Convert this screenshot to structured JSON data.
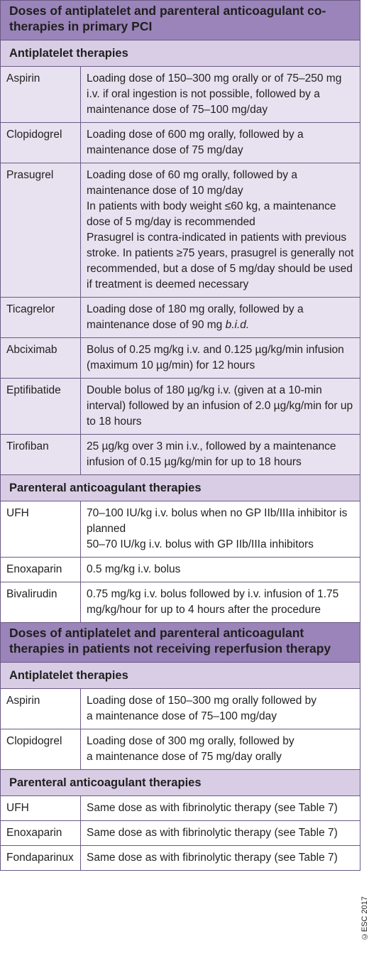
{
  "section1": {
    "title": "Doses of antiplatelet and parenteral anticoagulant co-therapies in primary PCI",
    "antiplatelet_heading": "Antiplatelet therapies",
    "antiplatelet_rows": [
      {
        "drug": "Aspirin",
        "lines": [
          "Loading dose of 150–300 mg orally or of 75–250 mg i.v. if oral ingestion is not possible, followed by a maintenance dose of 75–100 mg/day"
        ]
      },
      {
        "drug": "Clopidogrel",
        "lines": [
          "Loading dose of 600 mg orally, followed by a maintenance dose of 75 mg/day"
        ]
      },
      {
        "drug": "Prasugrel",
        "lines": [
          "Loading dose of 60 mg orally, followed by a maintenance dose of 10 mg/day",
          "In patients with body weight ≤60 kg, a maintenance dose of 5 mg/day is recommended",
          "Prasugrel is contra-indicated in patients with previous stroke. In patients ≥75 years, prasugrel is generally not recommended, but a dose of 5 mg/day should be used if treatment is deemed necessary"
        ]
      },
      {
        "drug": "Ticagrelor",
        "lines": [
          "Loading dose of 180 mg orally, followed by a maintenance dose of 90 mg b.i.d."
        ]
      },
      {
        "drug": "Abciximab",
        "lines": [
          "Bolus of 0.25 mg/kg i.v. and 0.125 µg/kg/min infusion (maximum 10 µg/min) for 12 hours"
        ]
      },
      {
        "drug": "Eptifibatide",
        "lines": [
          "Double bolus of 180 µg/kg i.v. (given at a 10-min interval) followed by an infusion of 2.0 µg/kg/min for up to 18 hours"
        ]
      },
      {
        "drug": "Tirofiban",
        "lines": [
          "25 µg/kg over 3 min i.v., followed by a maintenance infusion of 0.15 µg/kg/min for up to 18 hours"
        ]
      }
    ],
    "anticoagulant_heading": "Parenteral anticoagulant therapies",
    "anticoagulant_rows": [
      {
        "drug": "UFH",
        "lines": [
          "70–100 IU/kg i.v. bolus when no GP IIb/IIIa inhibitor is planned",
          "50–70 IU/kg i.v. bolus with GP IIb/IIIa inhibitors"
        ]
      },
      {
        "drug": "Enoxaparin",
        "lines": [
          "0.5 mg/kg i.v. bolus"
        ]
      },
      {
        "drug": "Bivalirudin",
        "lines": [
          "0.75 mg/kg i.v. bolus followed by i.v. infusion of 1.75 mg/kg/hour for up to 4 hours after the procedure"
        ]
      }
    ]
  },
  "section2": {
    "title": "Doses of antiplatelet and  parenteral anticoagulant therapies in patients not receiving reperfusion therapy",
    "antiplatelet_heading": "Antiplatelet therapies",
    "antiplatelet_rows": [
      {
        "drug": "Aspirin",
        "lines": [
          "Loading dose of 150–300 mg orally followed by",
          "a maintenance dose of 75–100 mg/day"
        ]
      },
      {
        "drug": "Clopidogrel",
        "lines": [
          "Loading dose of 300 mg orally, followed by",
          "a maintenance dose of 75 mg/day orally"
        ]
      }
    ],
    "anticoagulant_heading": "Parenteral anticoagulant therapies",
    "anticoagulant_rows": [
      {
        "drug": "UFH",
        "lines": [
          "Same dose as with fibrinolytic therapy (see Table 7)"
        ]
      },
      {
        "drug": "Enoxaparin",
        "lines": [
          "Same dose as with fibrinolytic therapy (see Table 7)"
        ]
      },
      {
        "drug": "Fondaparinux",
        "lines": [
          "Same dose as with fibrinolytic therapy (see Table 7)"
        ]
      }
    ]
  },
  "copyright": "©ESC 2017",
  "colors": {
    "header_dark": "#9a84b9",
    "header_light": "#d8cde4",
    "row_light": "#e8e1ef",
    "border": "#6a5a86"
  }
}
